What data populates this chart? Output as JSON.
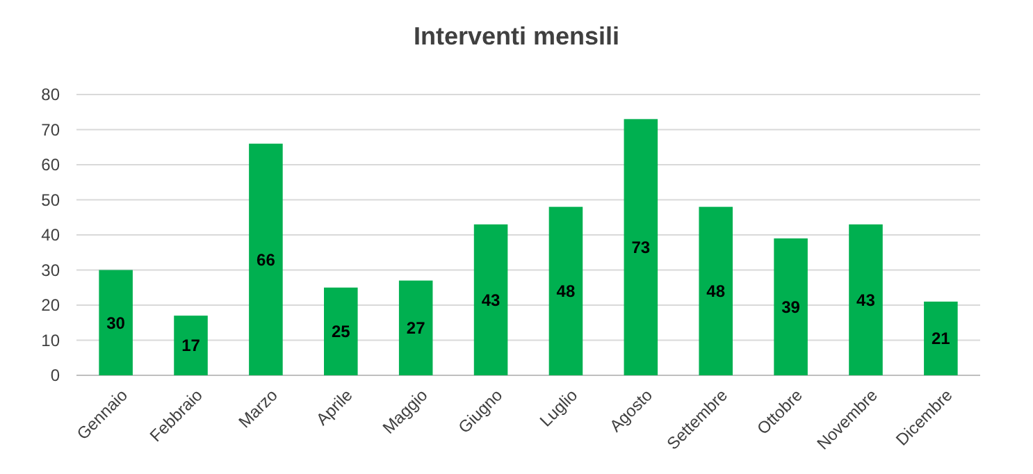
{
  "chart_data": {
    "type": "bar",
    "title": "Interventi mensili",
    "categories": [
      "Gennaio",
      "Febbraio",
      "Marzo",
      "Aprile",
      "Maggio",
      "Giugno",
      "Luglio",
      "Agosto",
      "Settembre",
      "Ottobre",
      "Novembre",
      "Dicembre"
    ],
    "values": [
      30,
      17,
      66,
      25,
      27,
      43,
      48,
      73,
      48,
      39,
      43,
      21
    ],
    "color": "#00b050",
    "ylim": [
      0,
      80
    ],
    "yticks": [
      0,
      10,
      20,
      30,
      40,
      50,
      60,
      70,
      80
    ],
    "grid": "y",
    "data_labels": true
  }
}
